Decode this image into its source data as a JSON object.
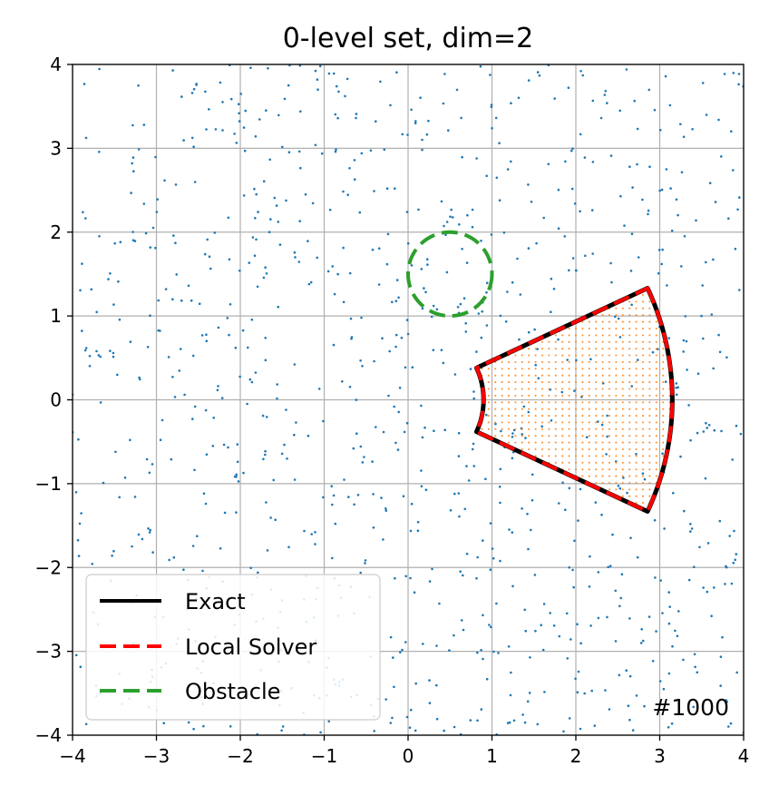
{
  "chart_data": {
    "type": "line",
    "title": "0-level set, dim=2",
    "xlabel": "",
    "ylabel": "",
    "xlim": [
      -4,
      4
    ],
    "ylim": [
      -4,
      4
    ],
    "grid": true,
    "xticks": [
      -4,
      -3,
      -2,
      -1,
      0,
      1,
      2,
      3,
      4
    ],
    "yticks": [
      -4,
      -3,
      -2,
      -1,
      0,
      1,
      2,
      3,
      4
    ],
    "xtick_labels": [
      "−4",
      "−3",
      "−2",
      "−1",
      "0",
      "1",
      "2",
      "3",
      "4"
    ],
    "ytick_labels": [
      "−4",
      "−3",
      "−2",
      "−1",
      "0",
      "1",
      "2",
      "3",
      "4"
    ],
    "legend_position": "lower-left",
    "annotation": "#1000",
    "series": [
      {
        "name": "Exact",
        "style": "solid",
        "color": "#000000",
        "shape": "annular-sector",
        "center": [
          0,
          0
        ],
        "inner_radius": 0.9,
        "outer_radius": 3.15,
        "angle_range_deg": [
          -25,
          25
        ]
      },
      {
        "name": "Local Solver",
        "style": "dashed",
        "color": "#ff0000",
        "shape": "annular-sector",
        "center": [
          0,
          0
        ],
        "inner_radius": 0.9,
        "outer_radius": 3.15,
        "angle_range_deg": [
          -25,
          25
        ]
      },
      {
        "name": "Obstacle",
        "style": "dashed",
        "color": "#2ca02c",
        "shape": "circle",
        "center": [
          0.5,
          1.5
        ],
        "radius": 0.5
      }
    ],
    "scatter_samples": {
      "color": "#1f77b4",
      "count": 1000,
      "distribution": "uniform",
      "range": [
        -4,
        4
      ]
    },
    "fill_grid": {
      "color": "#ff7f0e",
      "spacing": 0.08,
      "region": "annular-sector"
    }
  }
}
